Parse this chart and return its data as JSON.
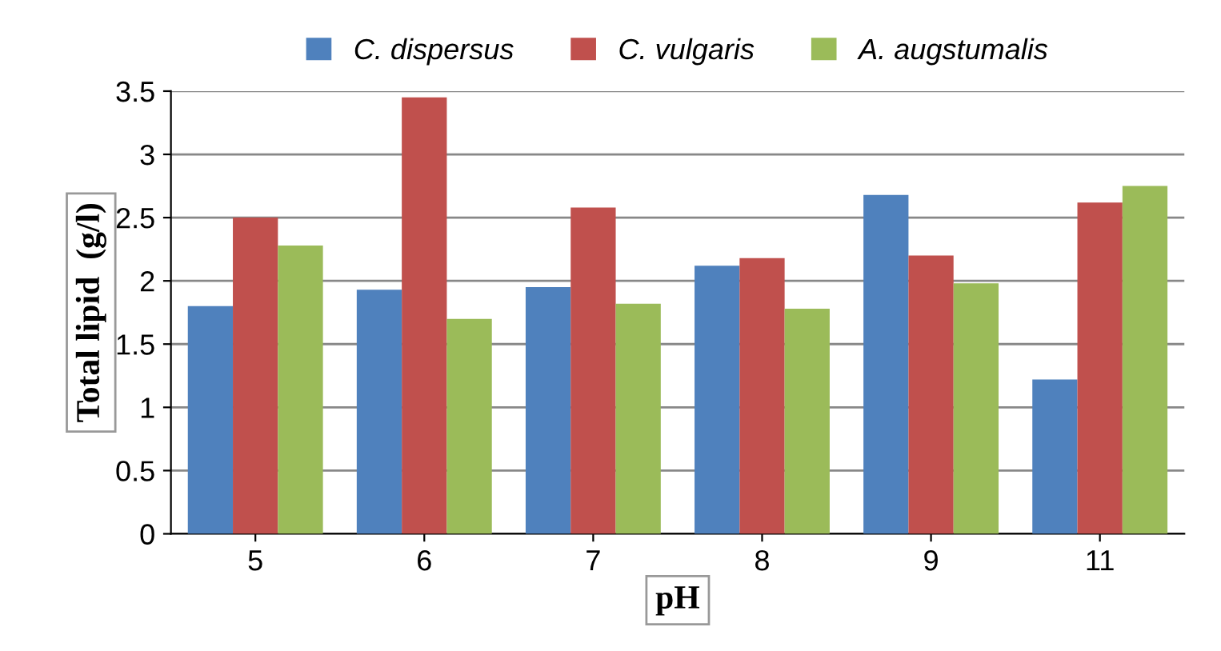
{
  "chart_data": {
    "type": "bar",
    "xlabel": "pH",
    "ylabel": "Total lipid  (g/l)",
    "categories": [
      "5",
      "6",
      "7",
      "8",
      "9",
      "11"
    ],
    "series": [
      {
        "name": "C. dispersus",
        "color": "#4f81bd",
        "values": [
          1.8,
          1.93,
          1.95,
          2.12,
          2.68,
          1.22
        ]
      },
      {
        "name": "C. vulgaris",
        "color": "#c0504d",
        "values": [
          2.5,
          3.45,
          2.58,
          2.18,
          2.2,
          2.62
        ]
      },
      {
        "name": "A. augstumalis",
        "color": "#9bbb59",
        "values": [
          2.28,
          1.7,
          1.82,
          1.78,
          1.98,
          2.75
        ]
      }
    ],
    "ylim": [
      0,
      3.5
    ],
    "yticks": [
      0,
      0.5,
      1,
      1.5,
      2,
      2.5,
      3,
      3.5
    ],
    "grid": "y",
    "legend": "top"
  }
}
